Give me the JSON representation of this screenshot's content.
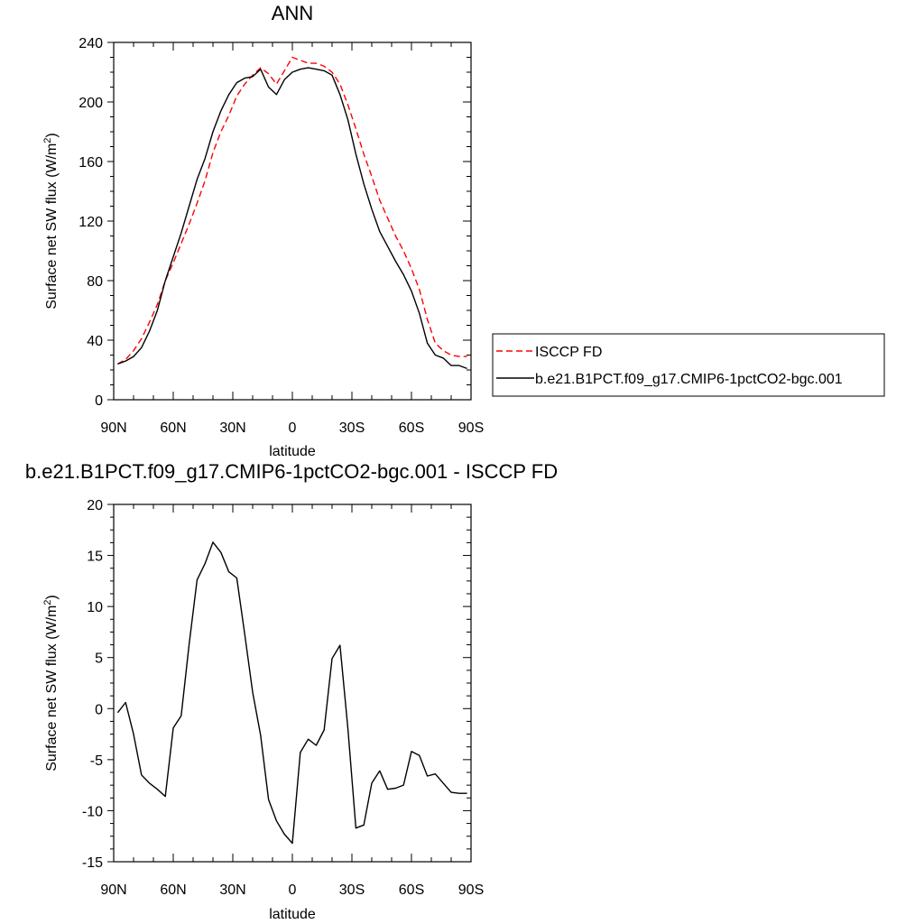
{
  "chart_data": [
    {
      "type": "line",
      "title": "ANN",
      "xlabel": "latitude",
      "ylabel": "Surface net SW flux (W/m",
      "ylabel_sup": "2",
      "ylabel_close": ")",
      "xlim": [
        90,
        -90
      ],
      "ylim": [
        0,
        240
      ],
      "xticks": [
        {
          "value": 90,
          "label": "90N"
        },
        {
          "value": 60,
          "label": "60N"
        },
        {
          "value": 30,
          "label": "30N"
        },
        {
          "value": 0,
          "label": "0"
        },
        {
          "value": -30,
          "label": "30S"
        },
        {
          "value": -60,
          "label": "60S"
        },
        {
          "value": -90,
          "label": "90S"
        }
      ],
      "yticks": [
        0,
        40,
        80,
        120,
        160,
        200,
        240
      ],
      "legend_position": "right",
      "series": [
        {
          "name": "ISCCP FD",
          "color": "#ff0000",
          "dash": "dashed",
          "x": [
            88,
            84,
            80,
            76,
            72,
            68,
            64,
            60,
            56,
            52,
            48,
            44,
            40,
            36,
            32,
            28,
            24,
            20,
            16,
            12,
            8,
            4,
            0,
            -4,
            -8,
            -12,
            -16,
            -20,
            -24,
            -28,
            -32,
            -36,
            -40,
            -44,
            -48,
            -52,
            -56,
            -60,
            -64,
            -68,
            -72,
            -76,
            -80,
            -84,
            -88
          ],
          "values": [
            24,
            27,
            33,
            41,
            52,
            64,
            80,
            92,
            105,
            118,
            132,
            147,
            166,
            180,
            191,
            204,
            212,
            218,
            223,
            219,
            212,
            221,
            230,
            228,
            226,
            226,
            224,
            220,
            212,
            198,
            182,
            165,
            150,
            134,
            122,
            110,
            100,
            88,
            74,
            54,
            38,
            33,
            30,
            29,
            29
          ]
        },
        {
          "name": "b.e21.B1PCT.f09_g17.CMIP6-1pctCO2-bgc.001",
          "color": "#000000",
          "dash": "solid",
          "x": [
            88,
            84,
            80,
            76,
            72,
            68,
            64,
            60,
            56,
            52,
            48,
            44,
            40,
            36,
            32,
            28,
            24,
            20,
            16,
            12,
            8,
            4,
            0,
            -4,
            -8,
            -12,
            -16,
            -20,
            -24,
            -28,
            -32,
            -36,
            -40,
            -44,
            -48,
            -52,
            -56,
            -60,
            -64,
            -68,
            -72,
            -76,
            -80,
            -84,
            -88
          ],
          "values": [
            24,
            26,
            29,
            35,
            46,
            60,
            80,
            96,
            112,
            130,
            148,
            162,
            180,
            194,
            205,
            213,
            216,
            217,
            222,
            210,
            205,
            215,
            220,
            222,
            223,
            222,
            221,
            218,
            205,
            188,
            165,
            145,
            128,
            113,
            103,
            93,
            84,
            73,
            58,
            38,
            30,
            28,
            23,
            23,
            21
          ]
        }
      ]
    },
    {
      "type": "line",
      "title": "b.e21.B1PCT.f09_g17.CMIP6-1pctCO2-bgc.001 - ISCCP FD",
      "xlabel": "latitude",
      "ylabel": "Surface net SW flux (W/m",
      "ylabel_sup": "2",
      "ylabel_close": ")",
      "xlim": [
        90,
        -90
      ],
      "ylim": [
        -15,
        20
      ],
      "xticks": [
        {
          "value": 90,
          "label": "90N"
        },
        {
          "value": 60,
          "label": "60N"
        },
        {
          "value": 30,
          "label": "30N"
        },
        {
          "value": 0,
          "label": "0"
        },
        {
          "value": -30,
          "label": "30S"
        },
        {
          "value": -60,
          "label": "60S"
        },
        {
          "value": -90,
          "label": "90S"
        }
      ],
      "yticks": [
        -15,
        -10,
        -5,
        0,
        5,
        10,
        15,
        20
      ],
      "series": [
        {
          "color": "#000000",
          "dash": "solid",
          "x": [
            88,
            84,
            80,
            76,
            72,
            68,
            64,
            60,
            56,
            52,
            48,
            44,
            40,
            36,
            32,
            28,
            24,
            20,
            16,
            12,
            8,
            4,
            0,
            -4,
            -8,
            -12,
            -16,
            -20,
            -24,
            -28,
            -32,
            -36,
            -40,
            -44,
            -48,
            -52,
            -56,
            -60,
            -64,
            -68,
            -72,
            -76,
            -80,
            -84,
            -88
          ],
          "values": [
            -0.4,
            0.6,
            -2.5,
            -6.5,
            -7.3,
            -7.9,
            -8.6,
            -1.9,
            -0.7,
            6.3,
            12.6,
            14.2,
            16.3,
            15.3,
            13.4,
            12.8,
            7.3,
            1.6,
            -2.6,
            -8.9,
            -11.0,
            -12.3,
            -13.2,
            -4.3,
            -3.0,
            -3.6,
            -2.1,
            4.9,
            6.2,
            -2.0,
            -11.7,
            -11.4,
            -7.3,
            -6.1,
            -7.9,
            -7.8,
            -7.5,
            -4.2,
            -4.6,
            -6.6,
            -6.4,
            -7.3,
            -8.2,
            -8.3,
            -8.3
          ]
        }
      ]
    }
  ]
}
